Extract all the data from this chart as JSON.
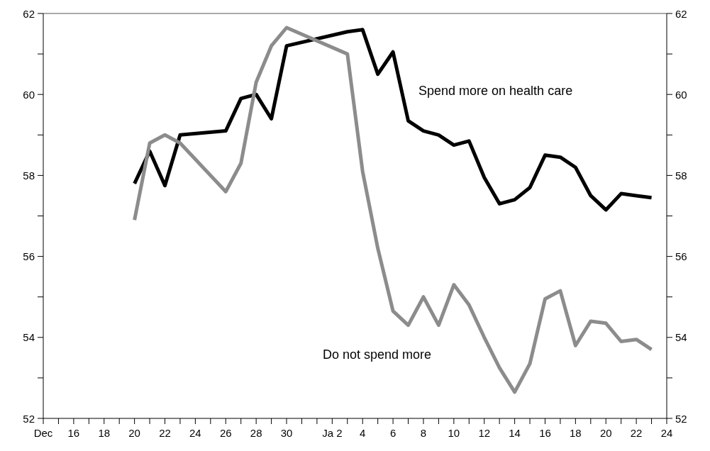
{
  "chart_data": {
    "type": "line",
    "categories": [
      "Dec",
      null,
      "16",
      null,
      "18",
      null,
      "20",
      null,
      "22",
      null,
      "24",
      null,
      "26",
      null,
      "28",
      null,
      "30",
      null,
      null,
      "Ja 2",
      null,
      "4",
      null,
      "6",
      null,
      "8",
      null,
      "10",
      null,
      "12",
      null,
      "14",
      null,
      "16",
      null,
      "18",
      null,
      "20",
      null,
      "22",
      null,
      "24"
    ],
    "series": [
      {
        "name": "Spend more on health care",
        "color": "#000000",
        "values": [
          null,
          null,
          null,
          null,
          null,
          null,
          57.8,
          58.6,
          57.75,
          59.0,
          null,
          null,
          59.1,
          59.9,
          60.0,
          59.4,
          61.2,
          null,
          null,
          null,
          61.55,
          61.6,
          60.5,
          61.05,
          59.35,
          59.1,
          59.0,
          58.75,
          58.85,
          57.95,
          57.3,
          57.4,
          57.7,
          58.5,
          58.45,
          58.2,
          57.5,
          57.15,
          57.55,
          57.5,
          57.45,
          null
        ]
      },
      {
        "name": "Do not spend more",
        "color": "#8c8c8c",
        "values": [
          null,
          null,
          null,
          null,
          null,
          null,
          56.9,
          58.8,
          59.0,
          58.8,
          null,
          null,
          57.6,
          58.3,
          60.3,
          61.2,
          61.65,
          null,
          null,
          null,
          61.0,
          58.1,
          56.2,
          54.65,
          54.3,
          55.0,
          54.3,
          55.3,
          54.8,
          54.0,
          53.25,
          52.65,
          53.35,
          54.95,
          55.15,
          53.8,
          54.4,
          54.35,
          53.9,
          53.95,
          53.7,
          null
        ]
      }
    ],
    "ylim": [
      52,
      62
    ],
    "yticks": [
      52,
      {
        "value": 53,
        "label": null
      },
      54,
      {
        "value": 55,
        "label": null
      },
      56,
      {
        "value": 57,
        "label": null
      },
      58,
      {
        "value": 59,
        "label": null
      },
      60,
      {
        "value": 61,
        "label": null
      },
      62
    ],
    "y2lim": [
      52,
      62
    ],
    "y2ticks": [
      52,
      {
        "value": 53,
        "label": null
      },
      54,
      {
        "value": 55,
        "label": null
      },
      56,
      {
        "value": 57,
        "label": null
      },
      58,
      {
        "value": 59,
        "label": null
      },
      60,
      {
        "value": 61,
        "label": null
      },
      62
    ],
    "grid": false,
    "legend": false,
    "marker": "none",
    "line_style": "solid"
  }
}
